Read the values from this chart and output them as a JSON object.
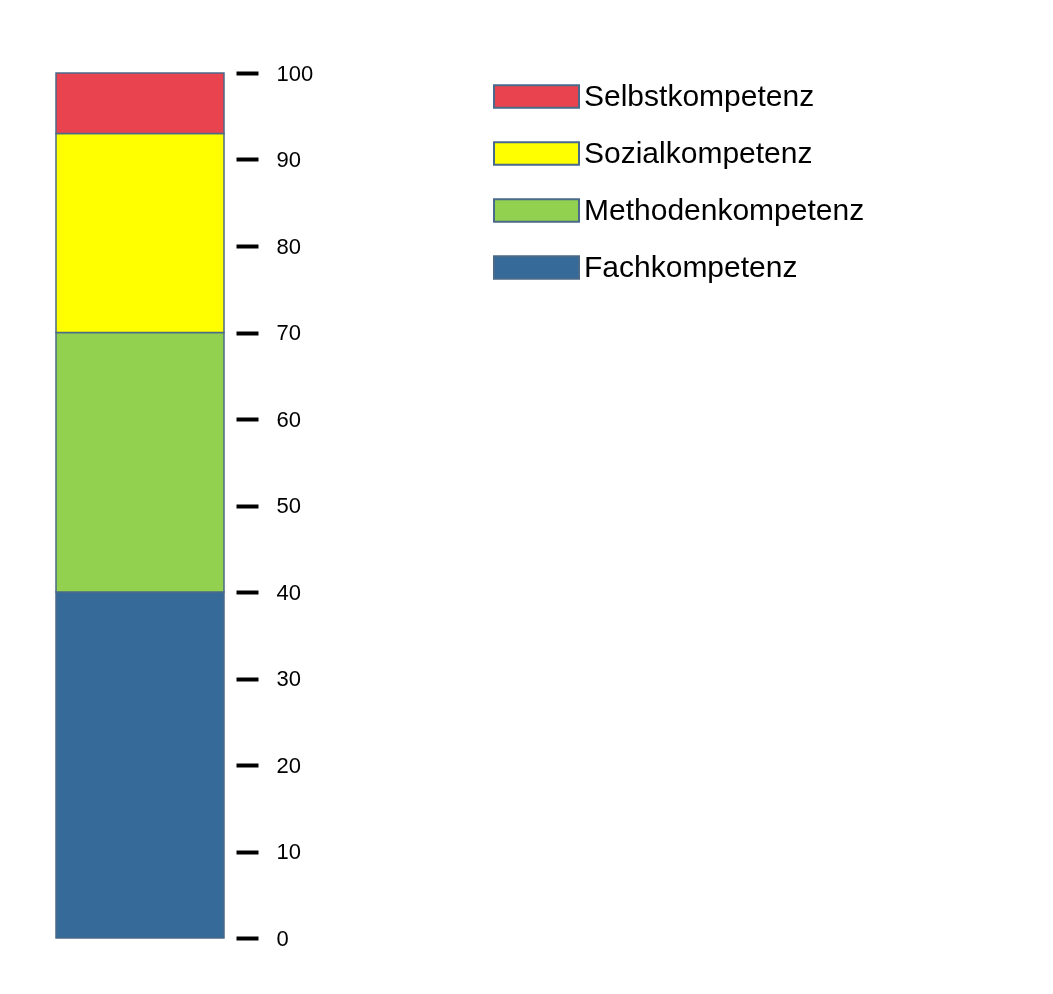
{
  "chart_data": {
    "type": "bar",
    "stacked": true,
    "categories": [
      null
    ],
    "series": [
      {
        "name": "Fachkompetenz",
        "color": "#356a99",
        "values": [
          40
        ]
      },
      {
        "name": "Methodenkompetenz",
        "color": "#92d050",
        "values": [
          30
        ]
      },
      {
        "name": "Sozialkompetenz",
        "color": "#ffff00",
        "values": [
          23
        ]
      },
      {
        "name": "Selbstkompetenz",
        "color": "#e8434f",
        "values": [
          7
        ]
      }
    ],
    "ylim": [
      0,
      100
    ],
    "yticks": [
      0,
      10,
      20,
      30,
      40,
      50,
      60,
      70,
      80,
      90,
      100
    ],
    "grid": false,
    "legend": "right",
    "tick_labels": "y"
  }
}
